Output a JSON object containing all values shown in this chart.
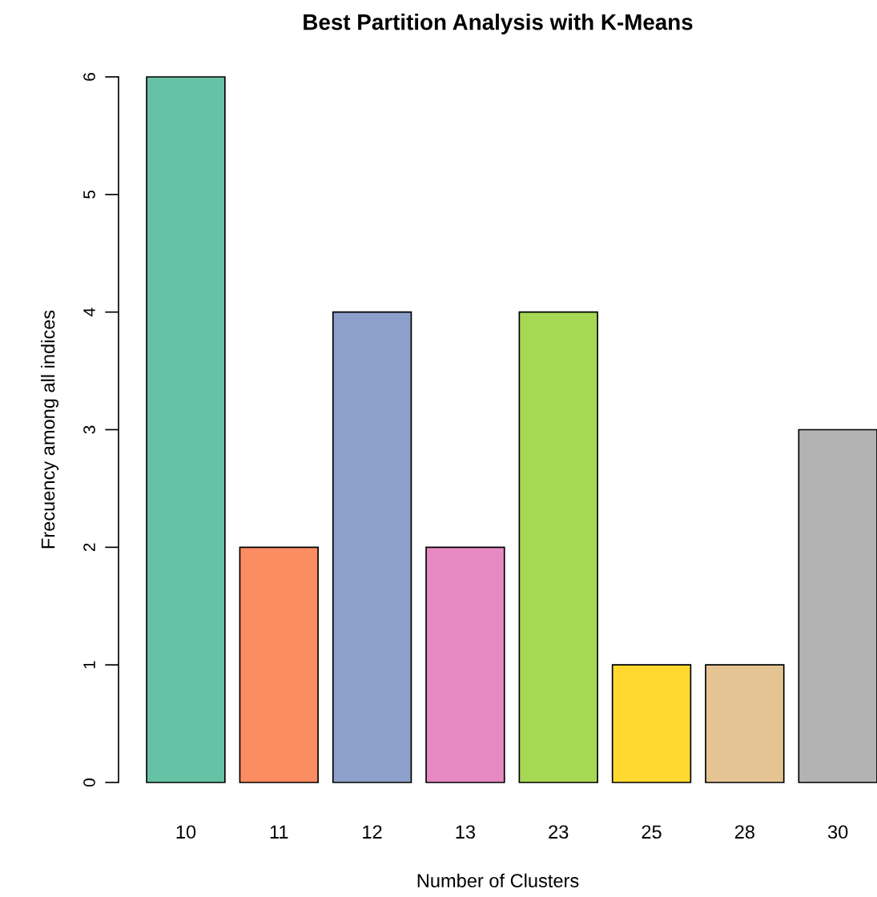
{
  "chart_data": {
    "type": "bar",
    "title": "Best Partition Analysis with K-Means",
    "xlabel": "Number of Clusters",
    "ylabel": "Frecuency among all indices",
    "categories": [
      "10",
      "11",
      "12",
      "13",
      "23",
      "25",
      "28",
      "30"
    ],
    "values": [
      6,
      2,
      4,
      2,
      4,
      1,
      1,
      3
    ],
    "colors": [
      "#66c2a5",
      "#fc8d62",
      "#8da0cb",
      "#e78ac3",
      "#a6d854",
      "#ffd92f",
      "#e5c494",
      "#b3b3b3"
    ],
    "ylim": [
      0,
      6
    ],
    "yticks": [
      0,
      1,
      2,
      3,
      4,
      5,
      6
    ],
    "grid": false,
    "legend": false
  }
}
